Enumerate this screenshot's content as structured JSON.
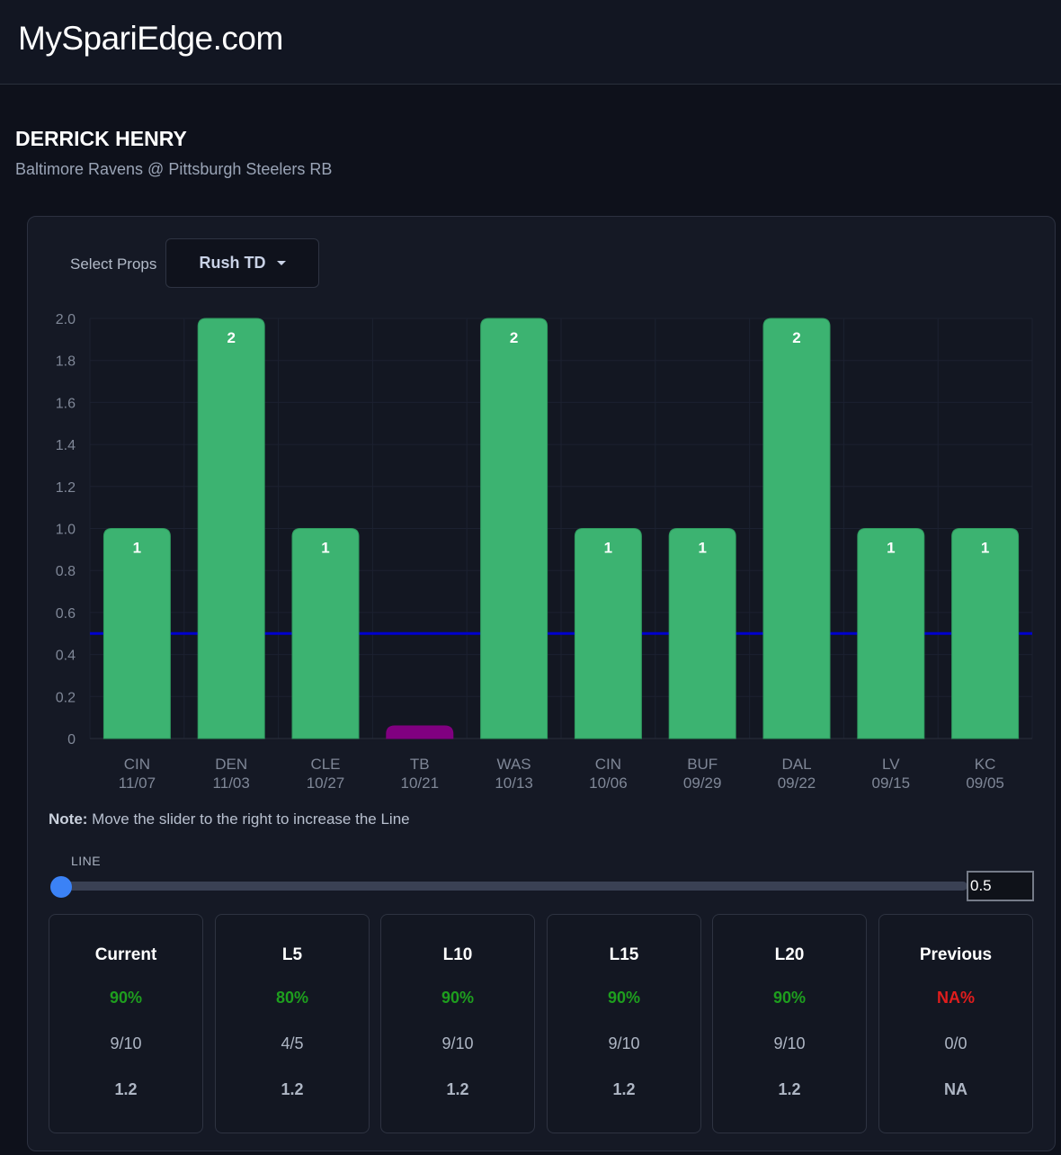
{
  "header": {
    "brand": "MySpariEdge.com"
  },
  "player": {
    "name": "DERRICK HENRY",
    "subtitle": "Baltimore Ravens @ Pittsburgh Steelers RB"
  },
  "props": {
    "label": "Select Props",
    "selected": "Rush TD"
  },
  "chart_data": {
    "type": "bar",
    "categories": [
      [
        "CIN",
        "11/07"
      ],
      [
        "DEN",
        "11/03"
      ],
      [
        "CLE",
        "10/27"
      ],
      [
        "TB",
        "10/21"
      ],
      [
        "WAS",
        "10/13"
      ],
      [
        "CIN",
        "10/06"
      ],
      [
        "BUF",
        "09/29"
      ],
      [
        "DAL",
        "09/22"
      ],
      [
        "LV",
        "09/15"
      ],
      [
        "KC",
        "09/05"
      ]
    ],
    "values": [
      1,
      2,
      1,
      0,
      2,
      1,
      1,
      2,
      1,
      1
    ],
    "data_labels": [
      "1",
      "2",
      "1",
      "",
      "2",
      "1",
      "1",
      "2",
      "1",
      "1"
    ],
    "ylim": [
      0,
      2
    ],
    "yticks": [
      "0",
      "0.2",
      "0.4",
      "0.6",
      "0.8",
      "1.0",
      "1.2",
      "1.4",
      "1.6",
      "1.8",
      "2.0"
    ],
    "line_value": 0.5,
    "colors": {
      "over": "#3cb371",
      "under": "#800080",
      "line": "#0000cd"
    },
    "grid": true
  },
  "note": {
    "bold": "Note:",
    "text": " Move the slider to the right to increase the Line"
  },
  "slider": {
    "label": "LINE",
    "value": "0.5",
    "fraction": 0
  },
  "stats": [
    {
      "title": "Current",
      "pct": "90%",
      "frac": "9/10",
      "avg": "1.2",
      "color": "#1e9e1e"
    },
    {
      "title": "L5",
      "pct": "80%",
      "frac": "4/5",
      "avg": "1.2",
      "color": "#1e9e1e"
    },
    {
      "title": "L10",
      "pct": "90%",
      "frac": "9/10",
      "avg": "1.2",
      "color": "#1e9e1e"
    },
    {
      "title": "L15",
      "pct": "90%",
      "frac": "9/10",
      "avg": "1.2",
      "color": "#1e9e1e"
    },
    {
      "title": "L20",
      "pct": "90%",
      "frac": "9/10",
      "avg": "1.2",
      "color": "#1e9e1e"
    },
    {
      "title": "Previous",
      "pct": "NA%",
      "frac": "0/0",
      "avg": "NA",
      "color": "#e11d1d"
    }
  ]
}
